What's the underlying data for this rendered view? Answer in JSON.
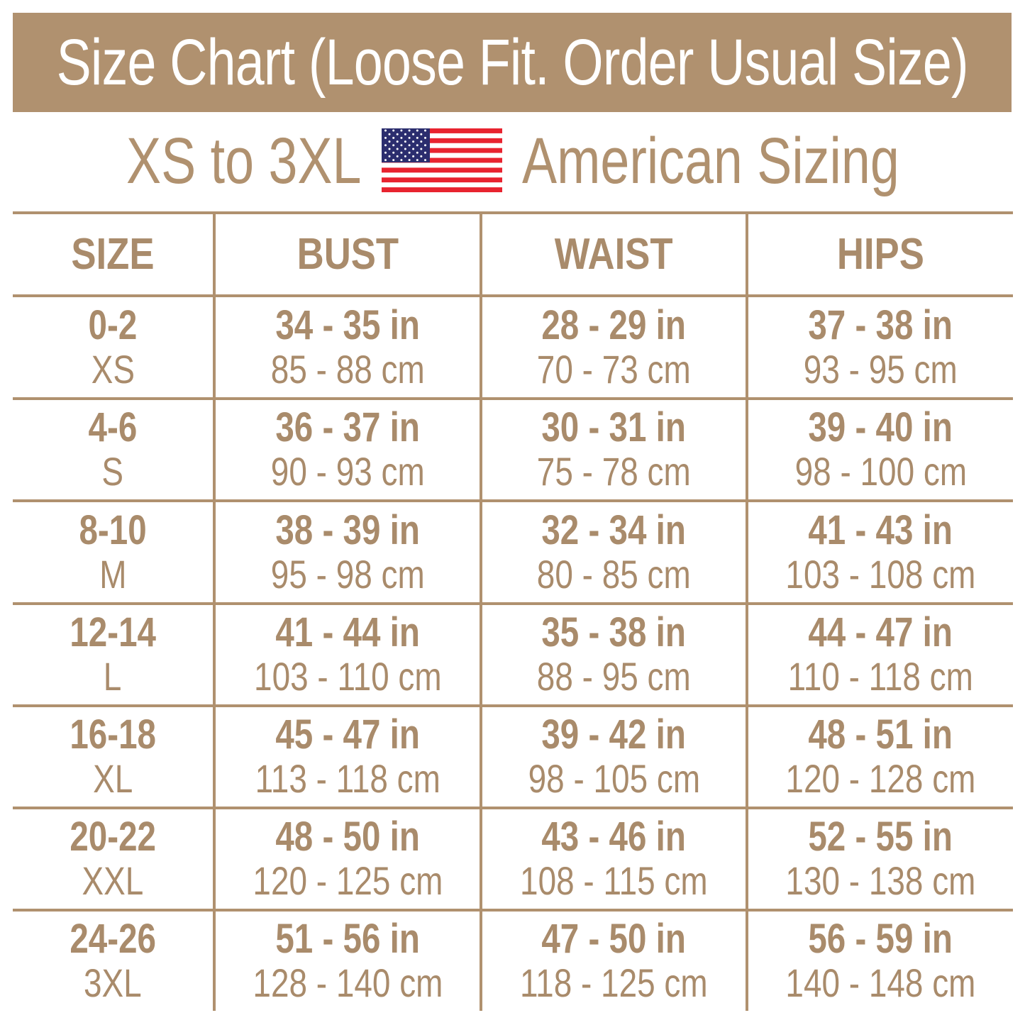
{
  "title": "Size Chart (Loose Fit. Order Usual Size)",
  "subtitle_left": "XS to 3XL",
  "subtitle_right": "American Sizing",
  "flag_icon": "us-flag-icon",
  "colors": {
    "brand": "#b0916f",
    "text": "#a98b6b",
    "flag_red": "#e8232f",
    "flag_blue": "#2b2d6e"
  },
  "headers": [
    "SIZE",
    "BUST",
    "WAIST",
    "HIPS"
  ],
  "rows": [
    {
      "size": "0-2",
      "label": "XS",
      "bust_in": "34 - 35 in",
      "bust_cm": "85 - 88 cm",
      "waist_in": "28 - 29 in",
      "waist_cm": "70 - 73 cm",
      "hips_in": "37 - 38 in",
      "hips_cm": "93 - 95 cm"
    },
    {
      "size": "4-6",
      "label": "S",
      "bust_in": "36 - 37 in",
      "bust_cm": "90 - 93 cm",
      "waist_in": "30 - 31 in",
      "waist_cm": "75 - 78 cm",
      "hips_in": "39 - 40 in",
      "hips_cm": "98 - 100 cm"
    },
    {
      "size": "8-10",
      "label": "M",
      "bust_in": "38 - 39 in",
      "bust_cm": "95 - 98 cm",
      "waist_in": "32 - 34 in",
      "waist_cm": "80 - 85 cm",
      "hips_in": "41 - 43 in",
      "hips_cm": "103 - 108 cm"
    },
    {
      "size": "12-14",
      "label": "L",
      "bust_in": "41 - 44 in",
      "bust_cm": "103 - 110 cm",
      "waist_in": "35 - 38 in",
      "waist_cm": "88 - 95 cm",
      "hips_in": "44 - 47 in",
      "hips_cm": "110 - 118 cm"
    },
    {
      "size": "16-18",
      "label": "XL",
      "bust_in": "45 - 47 in",
      "bust_cm": "113 - 118 cm",
      "waist_in": "39 - 42 in",
      "waist_cm": "98 - 105 cm",
      "hips_in": "48 - 51 in",
      "hips_cm": "120 - 128 cm"
    },
    {
      "size": "20-22",
      "label": "XXL",
      "bust_in": "48 - 50 in",
      "bust_cm": "120 - 125 cm",
      "waist_in": "43 - 46 in",
      "waist_cm": "108 - 115 cm",
      "hips_in": "52 - 55 in",
      "hips_cm": "130 - 138 cm"
    },
    {
      "size": "24-26",
      "label": "3XL",
      "bust_in": "51 - 56 in",
      "bust_cm": "128 - 140 cm",
      "waist_in": "47 - 50 in",
      "waist_cm": "118 - 125 cm",
      "hips_in": "56 - 59 in",
      "hips_cm": "140 - 148 cm"
    }
  ]
}
